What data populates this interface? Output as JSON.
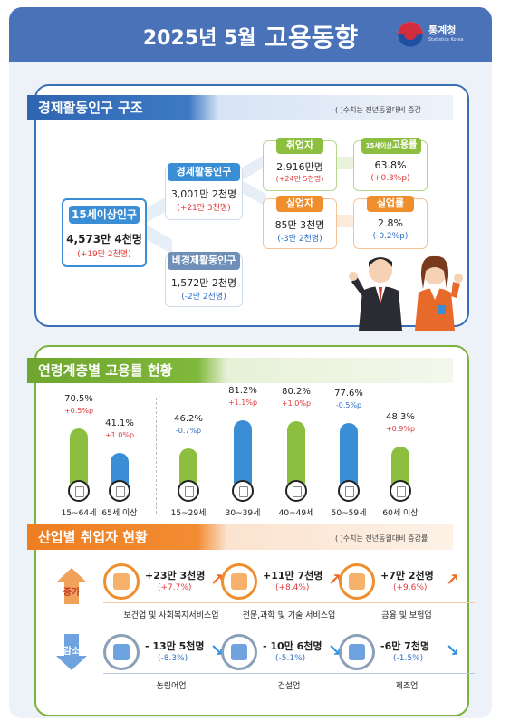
{
  "header": {
    "year_month": "2025년  5월",
    "title": "고용동향",
    "logo_name": "통계청",
    "logo_sub": "Statistics Korea"
  },
  "structure": {
    "title": "경제활동인구 구조",
    "note": "(  )수치는 전년동월대비 증감",
    "pop15": {
      "label": "15세이상인구",
      "value": "4,573만 4천명",
      "delta": "(+19만 2천명)"
    },
    "active": {
      "label": "경제활동인구",
      "value": "3,001만 2천명",
      "delta": "(+21만 3천명)"
    },
    "inactive": {
      "label": "비경제활동인구",
      "value": "1,572만 2천명",
      "delta": "(-2만 2천명)"
    },
    "employed": {
      "label": "취업자",
      "value": "2,916만명",
      "delta": "(+24만 5천명)"
    },
    "unemployed": {
      "label": "실업자",
      "value": "85만 3천명",
      "delta": "(-3만 2천명)"
    },
    "emp_rate": {
      "label_small": "15세이상",
      "label": "고용률",
      "value": "63.8%",
      "delta": "(+0.3%p)"
    },
    "unemp_rate": {
      "label": "실업률",
      "value": "2.8%",
      "delta": "(-0.2%p)"
    }
  },
  "age": {
    "title": "연령계층별 고용률 현황",
    "groups": [
      {
        "age": "15~64세",
        "pct": "70.5%",
        "delta": "+0.5%p",
        "value": 70.5,
        "color": "green",
        "dir": "up"
      },
      {
        "age": "65세 이상",
        "pct": "41.1%",
        "delta": "+1.0%p",
        "value": 41.1,
        "color": "blue",
        "dir": "up"
      },
      {
        "age": "15~29세",
        "pct": "46.2%",
        "delta": "-0.7%p",
        "value": 46.2,
        "color": "green",
        "dir": "down"
      },
      {
        "age": "30~39세",
        "pct": "81.2%",
        "delta": "+1.1%p",
        "value": 81.2,
        "color": "blue",
        "dir": "up"
      },
      {
        "age": "40~49세",
        "pct": "80.2%",
        "delta": "+1.0%p",
        "value": 80.2,
        "color": "green",
        "dir": "up"
      },
      {
        "age": "50~59세",
        "pct": "77.6%",
        "delta": "-0.5%p",
        "value": 77.6,
        "color": "blue",
        "dir": "down"
      },
      {
        "age": "60세 이상",
        "pct": "48.3%",
        "delta": "+0.9%p",
        "value": 48.3,
        "color": "green",
        "dir": "up"
      }
    ]
  },
  "industry": {
    "title": "산업별 취업자 현황",
    "note": "(  )수치는 전년동월대비 증감률",
    "increase_label": "증가",
    "decrease_label": "감소",
    "increase": [
      {
        "name": "보건업 및 사회복지서비스업",
        "value": "+23만 3천명",
        "delta": "(+7.7%)"
      },
      {
        "name": "전문,과학 및 기술 서비스업",
        "value": "+11만 7천명",
        "delta": "(+8.4%)"
      },
      {
        "name": "금융 및 보험업",
        "value": "+7만 2천명",
        "delta": "(+9.6%)"
      }
    ],
    "decrease": [
      {
        "name": "농림어업",
        "value": "- 13만 5천명",
        "delta": "(-8.3%)"
      },
      {
        "name": "건설업",
        "value": "- 10만 6천명",
        "delta": "(-5.1%)"
      },
      {
        "name": "제조업",
        "value": "-6만 7천명",
        "delta": "(-1.5%)"
      }
    ]
  },
  "colors": {
    "header": "#4a72b8",
    "blue": "#3a8ed6",
    "green": "#8cbf3f",
    "orange": "#ef7e22",
    "red_text": "#e03a3a",
    "blue_text": "#2e6fc4"
  }
}
